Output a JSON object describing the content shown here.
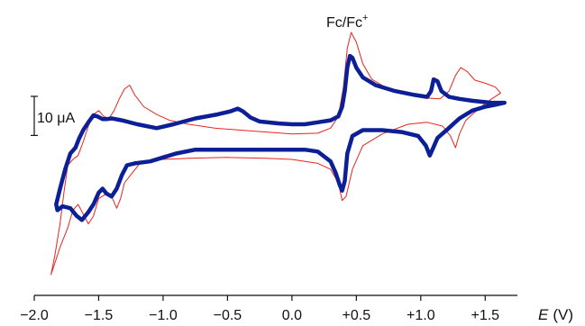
{
  "chart_data": {
    "type": "line",
    "title": "",
    "xlabel": {
      "italic": "E",
      "unit": "(V)"
    },
    "ylabel": "",
    "xlim": [
      -2.0,
      1.75
    ],
    "ylim": [
      -4.2,
      2.9
    ],
    "x_ticks": [
      {
        "value": -2.0,
        "label": "−2.0"
      },
      {
        "value": -1.5,
        "label": "−1.5"
      },
      {
        "value": -1.0,
        "label": "−1.0"
      },
      {
        "value": -0.5,
        "label": "−0.5"
      },
      {
        "value": 0.0,
        "label": "0.0"
      },
      {
        "value": 0.5,
        "label": "+0.5"
      },
      {
        "value": 1.0,
        "label": "+1.0"
      },
      {
        "value": 1.5,
        "label": "+1.5"
      }
    ],
    "grid": false,
    "scale_bar": {
      "label": "10 μA",
      "value_uA": 10,
      "units_per_uA": 0.1
    },
    "annotation": {
      "text": "Fc/Fc",
      "sup": "+",
      "x": 0.45
    },
    "series": [
      {
        "key": "thin-red",
        "color": "#e8231e",
        "points": [
          [
            0.37,
            0.35
          ],
          [
            0.4,
            0.9
          ],
          [
            0.43,
            1.9
          ],
          [
            0.46,
            2.3
          ],
          [
            0.5,
            2.05
          ],
          [
            0.55,
            1.5
          ],
          [
            0.62,
            1.1
          ],
          [
            0.75,
            0.85
          ],
          [
            0.9,
            0.7
          ],
          [
            1.05,
            0.62
          ],
          [
            1.15,
            0.6
          ],
          [
            1.22,
            0.8
          ],
          [
            1.27,
            1.2
          ],
          [
            1.31,
            1.4
          ],
          [
            1.36,
            1.3
          ],
          [
            1.42,
            1.08
          ],
          [
            1.5,
            1.0
          ],
          [
            1.58,
            0.9
          ],
          [
            1.62,
            0.75
          ],
          [
            1.55,
            0.6
          ],
          [
            1.45,
            0.35
          ],
          [
            1.35,
            0.05
          ],
          [
            1.3,
            -0.3
          ],
          [
            1.27,
            -0.65
          ],
          [
            1.23,
            -0.35
          ],
          [
            1.17,
            -0.1
          ],
          [
            1.05,
            0.0
          ],
          [
            0.9,
            -0.05
          ],
          [
            0.7,
            -0.3
          ],
          [
            0.55,
            -0.6
          ],
          [
            0.47,
            -1.2
          ],
          [
            0.42,
            -1.9
          ],
          [
            0.39,
            -2.0
          ],
          [
            0.36,
            -1.55
          ],
          [
            0.3,
            -1.2
          ],
          [
            0.2,
            -1.05
          ],
          [
            0.0,
            -0.95
          ],
          [
            -0.2,
            -0.92
          ],
          [
            -0.5,
            -0.9
          ],
          [
            -0.8,
            -0.92
          ],
          [
            -1.0,
            -0.95
          ],
          [
            -1.1,
            -0.98
          ],
          [
            -1.18,
            -1.05
          ],
          [
            -1.24,
            -1.3
          ],
          [
            -1.3,
            -1.55
          ],
          [
            -1.33,
            -1.95
          ],
          [
            -1.36,
            -2.2
          ],
          [
            -1.4,
            -1.9
          ],
          [
            -1.45,
            -1.85
          ],
          [
            -1.5,
            -1.95
          ],
          [
            -1.54,
            -2.4
          ],
          [
            -1.58,
            -2.6
          ],
          [
            -1.62,
            -2.35
          ],
          [
            -1.66,
            -2.1
          ],
          [
            -1.7,
            -2.25
          ],
          [
            -1.74,
            -2.7
          ],
          [
            -1.8,
            -3.2
          ],
          [
            -1.84,
            -3.6
          ],
          [
            -1.87,
            -3.9
          ],
          [
            -1.84,
            -3.4
          ],
          [
            -1.8,
            -2.6
          ],
          [
            -1.77,
            -1.8
          ],
          [
            -1.74,
            -1.1
          ],
          [
            -1.7,
            -0.95
          ],
          [
            -1.66,
            -0.85
          ],
          [
            -1.62,
            -0.5
          ],
          [
            -1.58,
            -0.1
          ],
          [
            -1.54,
            0.2
          ],
          [
            -1.5,
            0.3
          ],
          [
            -1.46,
            0.15
          ],
          [
            -1.42,
            0.1
          ],
          [
            -1.38,
            0.3
          ],
          [
            -1.34,
            0.6
          ],
          [
            -1.3,
            0.85
          ],
          [
            -1.26,
            0.95
          ],
          [
            -1.22,
            0.7
          ],
          [
            -1.15,
            0.4
          ],
          [
            -1.05,
            0.2
          ],
          [
            -0.95,
            0.05
          ],
          [
            -0.8,
            -0.05
          ],
          [
            -0.6,
            -0.15
          ],
          [
            -0.4,
            -0.2
          ],
          [
            -0.2,
            -0.25
          ],
          [
            0.0,
            -0.3
          ],
          [
            0.2,
            -0.28
          ],
          [
            0.3,
            -0.15
          ],
          [
            0.35,
            0.1
          ],
          [
            0.37,
            0.35
          ]
        ]
      },
      {
        "key": "bold-blue",
        "color": "#0d1f96",
        "points": [
          [
            0.0,
            -0.05
          ],
          [
            -0.1,
            -0.03
          ],
          [
            -0.25,
            0.02
          ],
          [
            -0.32,
            0.12
          ],
          [
            -0.38,
            0.28
          ],
          [
            -0.42,
            0.35
          ],
          [
            -0.48,
            0.28
          ],
          [
            -0.58,
            0.2
          ],
          [
            -0.75,
            0.1
          ],
          [
            -0.92,
            -0.05
          ],
          [
            -1.05,
            -0.15
          ],
          [
            -1.2,
            -0.05
          ],
          [
            -1.32,
            0.05
          ],
          [
            -1.4,
            0.1
          ],
          [
            -1.44,
            0.08
          ],
          [
            -1.47,
            0.08
          ],
          [
            -1.51,
            0.15
          ],
          [
            -1.54,
            0.18
          ],
          [
            -1.58,
            0.0
          ],
          [
            -1.62,
            -0.2
          ],
          [
            -1.65,
            -0.4
          ],
          [
            -1.68,
            -0.65
          ],
          [
            -1.72,
            -0.8
          ],
          [
            -1.76,
            -1.2
          ],
          [
            -1.8,
            -1.7
          ],
          [
            -1.83,
            -2.1
          ],
          [
            -1.82,
            -2.25
          ],
          [
            -1.78,
            -2.15
          ],
          [
            -1.72,
            -2.2
          ],
          [
            -1.67,
            -2.4
          ],
          [
            -1.63,
            -2.5
          ],
          [
            -1.58,
            -2.3
          ],
          [
            -1.54,
            -2.1
          ],
          [
            -1.5,
            -1.8
          ],
          [
            -1.47,
            -1.7
          ],
          [
            -1.44,
            -1.82
          ],
          [
            -1.4,
            -1.9
          ],
          [
            -1.36,
            -1.7
          ],
          [
            -1.32,
            -1.35
          ],
          [
            -1.28,
            -1.1
          ],
          [
            -1.22,
            -1.05
          ],
          [
            -1.1,
            -1.0
          ],
          [
            -1.0,
            -0.9
          ],
          [
            -0.9,
            -0.8
          ],
          [
            -0.75,
            -0.7
          ],
          [
            -0.5,
            -0.7
          ],
          [
            -0.2,
            -0.7
          ],
          [
            0.0,
            -0.7
          ],
          [
            0.1,
            -0.7
          ],
          [
            0.2,
            -0.75
          ],
          [
            0.3,
            -1.0
          ],
          [
            0.34,
            -1.3
          ],
          [
            0.37,
            -1.6
          ],
          [
            0.39,
            -1.75
          ],
          [
            0.41,
            -1.5
          ],
          [
            0.43,
            -0.8
          ],
          [
            0.47,
            -0.35
          ],
          [
            0.55,
            -0.2
          ],
          [
            0.7,
            -0.2
          ],
          [
            0.85,
            -0.25
          ],
          [
            0.98,
            -0.35
          ],
          [
            1.04,
            -0.6
          ],
          [
            1.07,
            -0.85
          ],
          [
            1.09,
            -0.7
          ],
          [
            1.13,
            -0.4
          ],
          [
            1.2,
            -0.2
          ],
          [
            1.3,
            0.1
          ],
          [
            1.4,
            0.3
          ],
          [
            1.5,
            0.4
          ],
          [
            1.58,
            0.45
          ],
          [
            1.65,
            0.5
          ],
          [
            1.55,
            0.5
          ],
          [
            1.4,
            0.55
          ],
          [
            1.3,
            0.6
          ],
          [
            1.22,
            0.65
          ],
          [
            1.16,
            0.8
          ],
          [
            1.13,
            1.05
          ],
          [
            1.1,
            1.1
          ],
          [
            1.08,
            0.8
          ],
          [
            1.05,
            0.65
          ],
          [
            0.95,
            0.7
          ],
          [
            0.8,
            0.8
          ],
          [
            0.65,
            0.95
          ],
          [
            0.55,
            1.15
          ],
          [
            0.5,
            1.4
          ],
          [
            0.47,
            1.65
          ],
          [
            0.45,
            1.7
          ],
          [
            0.43,
            1.4
          ],
          [
            0.41,
            0.8
          ],
          [
            0.39,
            0.4
          ],
          [
            0.36,
            0.15
          ],
          [
            0.3,
            0.05
          ],
          [
            0.2,
            0.0
          ],
          [
            0.1,
            -0.05
          ],
          [
            0.0,
            -0.05
          ]
        ]
      }
    ]
  }
}
